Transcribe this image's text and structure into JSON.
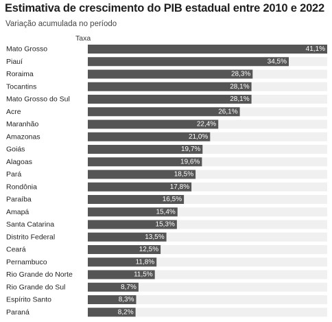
{
  "chart_data": {
    "type": "bar",
    "orientation": "horizontal",
    "title": "Estimativa de crescimento do PIB estadual entre 2010 e 2022",
    "subtitle": "Variação acumulada no período",
    "column_header": "Taxa",
    "categories": [
      "Mato Grosso",
      "Piauí",
      "Roraima",
      "Tocantins",
      "Mato Grosso do Sul",
      "Acre",
      "Maranhão",
      "Amazonas",
      "Goiás",
      "Alagoas",
      "Pará",
      "Rondônia",
      "Paraíba",
      "Amapá",
      "Santa Catarina",
      "Distrito Federal",
      "Ceará",
      "Pernambuco",
      "Rio Grande do Norte",
      "Rio Grande do Sul",
      "Espírito Santo",
      "Paraná"
    ],
    "values": [
      41.1,
      34.5,
      28.3,
      28.1,
      28.1,
      26.1,
      22.4,
      21.0,
      19.7,
      19.6,
      18.5,
      17.8,
      16.5,
      15.4,
      15.3,
      13.5,
      12.5,
      11.8,
      11.5,
      8.7,
      8.3,
      8.2
    ],
    "value_labels": [
      "41,1%",
      "34,5%",
      "28,3%",
      "28,1%",
      "28,1%",
      "26,1%",
      "22,4%",
      "21,0%",
      "19,7%",
      "19,6%",
      "18,5%",
      "17,8%",
      "16,5%",
      "15,4%",
      "15,3%",
      "13,5%",
      "12,5%",
      "11,8%",
      "11,5%",
      "8,7%",
      "8,3%",
      "8,2%"
    ],
    "xlim": [
      0,
      41.1
    ],
    "colors": {
      "bar": "#555555",
      "track": "#f0f0f0",
      "value_text": "#ffffff"
    }
  }
}
